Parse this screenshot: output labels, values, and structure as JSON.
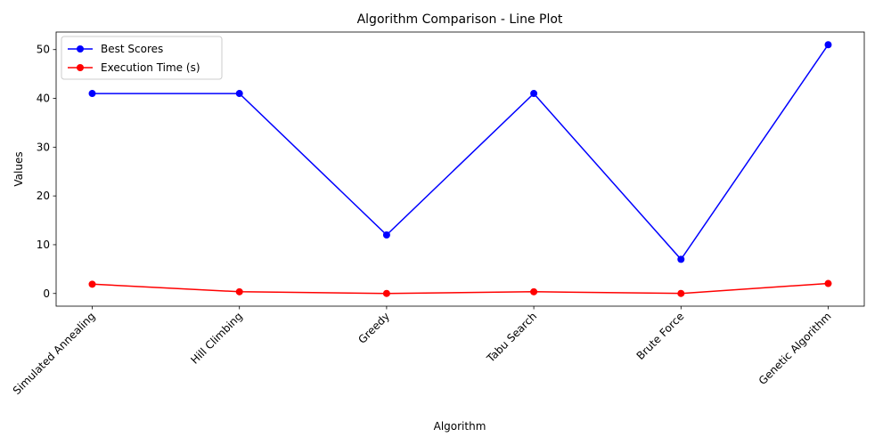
{
  "chart_data": {
    "type": "line",
    "title": "Algorithm Comparison - Line Plot",
    "xlabel": "Algorithm",
    "ylabel": "Values",
    "categories": [
      "Simulated Annealing",
      "Hill Climbing",
      "Greedy",
      "Tabu Search",
      "Brute Force",
      "Genetic Algorithm"
    ],
    "ylim": [
      -2.6,
      53.6
    ],
    "yticks": [
      0,
      10,
      20,
      30,
      40,
      50
    ],
    "grid": false,
    "legend_position": "upper-left",
    "series": [
      {
        "name": "Best Scores",
        "color": "#0000ff",
        "marker": "circle",
        "values": [
          41,
          41,
          12,
          41,
          7,
          51
        ]
      },
      {
        "name": "Execution Time (s)",
        "color": "#ff0000",
        "marker": "circle",
        "values": [
          1.9,
          0.35,
          0.01,
          0.35,
          0.01,
          2.05
        ]
      }
    ]
  }
}
